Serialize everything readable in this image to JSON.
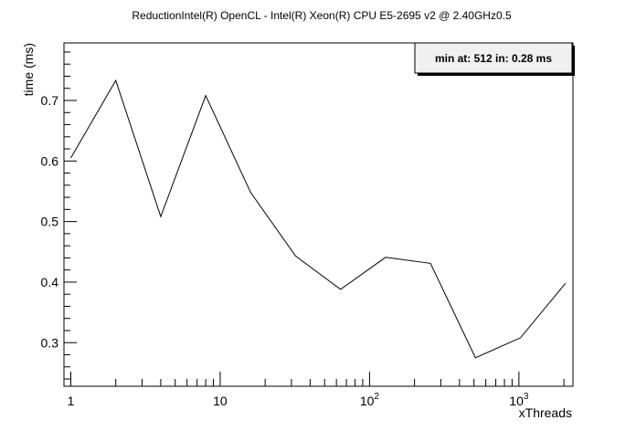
{
  "chart_data": {
    "type": "line",
    "title": "ReductionIntel(R) OpenCL -       Intel(R) Xeon(R) CPU E5-2695 v2 @ 2.40GHz0.5",
    "xlabel": "xThreads",
    "ylabel": "time (ms)",
    "x_scale": "log",
    "xlim": [
      0.9,
      2300
    ],
    "ylim": [
      0.228,
      0.795
    ],
    "grid": false,
    "x_tick_labels": [
      {
        "value": 1,
        "base": "1",
        "exp": ""
      },
      {
        "value": 10,
        "base": "10",
        "exp": ""
      },
      {
        "value": 100,
        "base": "10",
        "exp": "2"
      },
      {
        "value": 1000,
        "base": "10",
        "exp": "3"
      }
    ],
    "y_ticks": [
      0.3,
      0.4,
      0.5,
      0.6,
      0.7
    ],
    "y_tick_labels": [
      "0.3",
      "0.4",
      "0.5",
      "0.6",
      "0.7"
    ],
    "series": [
      {
        "x": [
          1,
          2,
          4,
          8,
          16,
          32,
          64,
          128,
          256,
          512,
          1024,
          2048
        ],
        "y": [
          0.605,
          0.733,
          0.508,
          0.708,
          0.548,
          0.443,
          0.388,
          0.441,
          0.431,
          0.275,
          0.308,
          0.398
        ],
        "color": "#000000"
      }
    ],
    "legend": {
      "text": "min at: 512 in: 0.28 ms",
      "placement": "top-right"
    }
  }
}
